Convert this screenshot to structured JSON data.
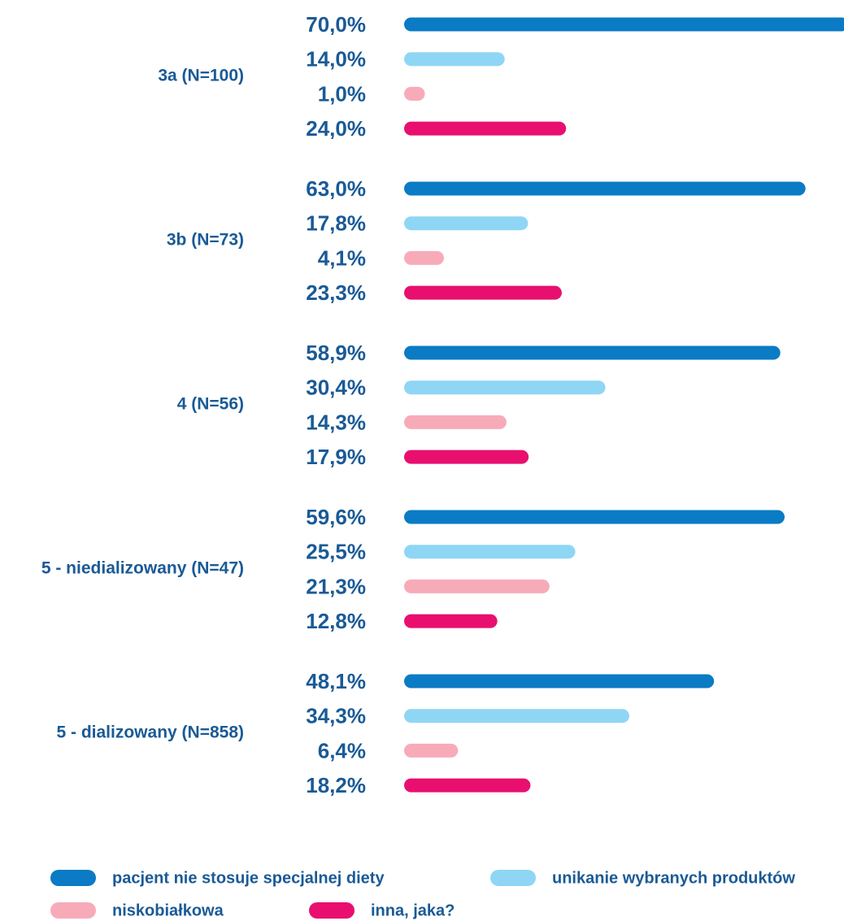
{
  "chart_data": {
    "type": "bar",
    "orientation": "horizontal",
    "categories": [
      "3a (N=100)",
      "3b (N=73)",
      "4 (N=56)",
      "5 - niedializowany (N=47)",
      "5 - dializowany (N=858)"
    ],
    "series": [
      {
        "name": "pacjent nie stosuje specjalnej diety",
        "color": "#0a7bc4",
        "values": [
          70.0,
          63.0,
          58.9,
          59.6,
          48.1
        ],
        "value_labels": [
          "70,0%",
          "63,0%",
          "58,9%",
          "59,6%",
          "48,1%"
        ]
      },
      {
        "name": "unikanie wybranych produktów",
        "color": "#8fd6f5",
        "values": [
          14.0,
          17.8,
          30.4,
          25.5,
          34.3
        ],
        "value_labels": [
          "14,0%",
          "17,8%",
          "30,4%",
          "25,5%",
          "34,3%"
        ]
      },
      {
        "name": "niskobiałkowa",
        "color": "#f7abb9",
        "values": [
          1.0,
          4.1,
          14.3,
          21.3,
          6.4
        ],
        "value_labels": [
          "1,0%",
          "4,1%",
          "14,3%",
          "21,3%",
          "6,4%"
        ]
      },
      {
        "name": "inna, jaka?",
        "color": "#e80f6f",
        "values": [
          24.0,
          23.3,
          17.9,
          12.8,
          18.2
        ],
        "value_labels": [
          "24,0%",
          "23,3%",
          "17,9%",
          "12,8%",
          "18,2%"
        ]
      }
    ],
    "legend": "bottom"
  }
}
